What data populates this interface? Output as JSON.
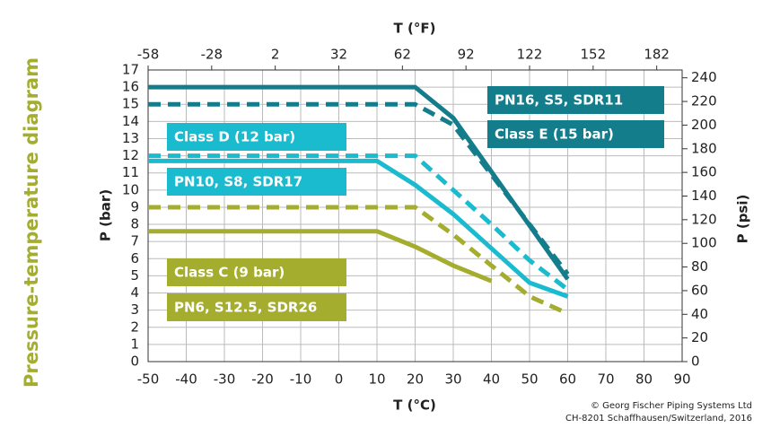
{
  "chart_data": {
    "type": "line",
    "title": "Pressure-temperature diagram",
    "xlabel": "T (°C)",
    "x2label": "T (°F)",
    "ylabel": "P (bar)",
    "y2label": "P (psi)",
    "xlim": [
      -50,
      90
    ],
    "xticks": [
      -50,
      -40,
      -30,
      -20,
      -10,
      0,
      10,
      20,
      30,
      40,
      50,
      60,
      70,
      80,
      90
    ],
    "x2lim": [
      -58,
      194
    ],
    "x2ticks": [
      -58,
      -28,
      2,
      32,
      62,
      92,
      122,
      152,
      182
    ],
    "ylim": [
      0,
      17
    ],
    "yticks": [
      0,
      1,
      2,
      3,
      4,
      5,
      6,
      7,
      8,
      9,
      10,
      11,
      12,
      13,
      14,
      15,
      16,
      17
    ],
    "y2lim": [
      0,
      246.6
    ],
    "y2ticks": [
      0,
      20,
      40,
      60,
      80,
      100,
      120,
      140,
      160,
      180,
      200,
      220,
      240
    ],
    "grid": true,
    "series": [
      {
        "name": "PN16, S5, SDR11",
        "color": "#147d8c",
        "dash": false,
        "x": [
          -50,
          20,
          30,
          60
        ],
        "values": [
          16,
          16,
          14.2,
          4.8
        ]
      },
      {
        "name": "Class E (15 bar)",
        "color": "#147d8c",
        "dash": true,
        "x": [
          -50,
          20,
          30,
          60
        ],
        "values": [
          15,
          15,
          13.8,
          5.1
        ]
      },
      {
        "name": "Class D (12 bar)",
        "color": "#1bbbcf",
        "dash": true,
        "x": [
          -50,
          20,
          30,
          40,
          50,
          60
        ],
        "values": [
          12,
          12,
          10,
          8,
          5.9,
          4.2
        ]
      },
      {
        "name": "PN10, S8, SDR17",
        "color": "#1bbbcf",
        "dash": false,
        "x": [
          -50,
          10,
          20,
          30,
          40,
          50,
          60
        ],
        "values": [
          11.7,
          11.7,
          10.3,
          8.6,
          6.6,
          4.6,
          3.8
        ]
      },
      {
        "name": "Class C (9 bar)",
        "color": "#a4ad2e",
        "dash": true,
        "x": [
          -50,
          20,
          30,
          40,
          50,
          60
        ],
        "values": [
          9,
          9,
          7.4,
          5.6,
          3.8,
          2.8
        ]
      },
      {
        "name": "PN6, S12.5, SDR26",
        "color": "#a4ad2e",
        "dash": false,
        "x": [
          -50,
          10,
          20,
          30,
          40
        ],
        "values": [
          7.6,
          7.6,
          6.7,
          5.6,
          4.7
        ]
      }
    ],
    "copyright": [
      "© Georg Fischer Piping Systems Ltd",
      "CH-8201 Schaffhausen/Switzerland, 2016"
    ]
  }
}
